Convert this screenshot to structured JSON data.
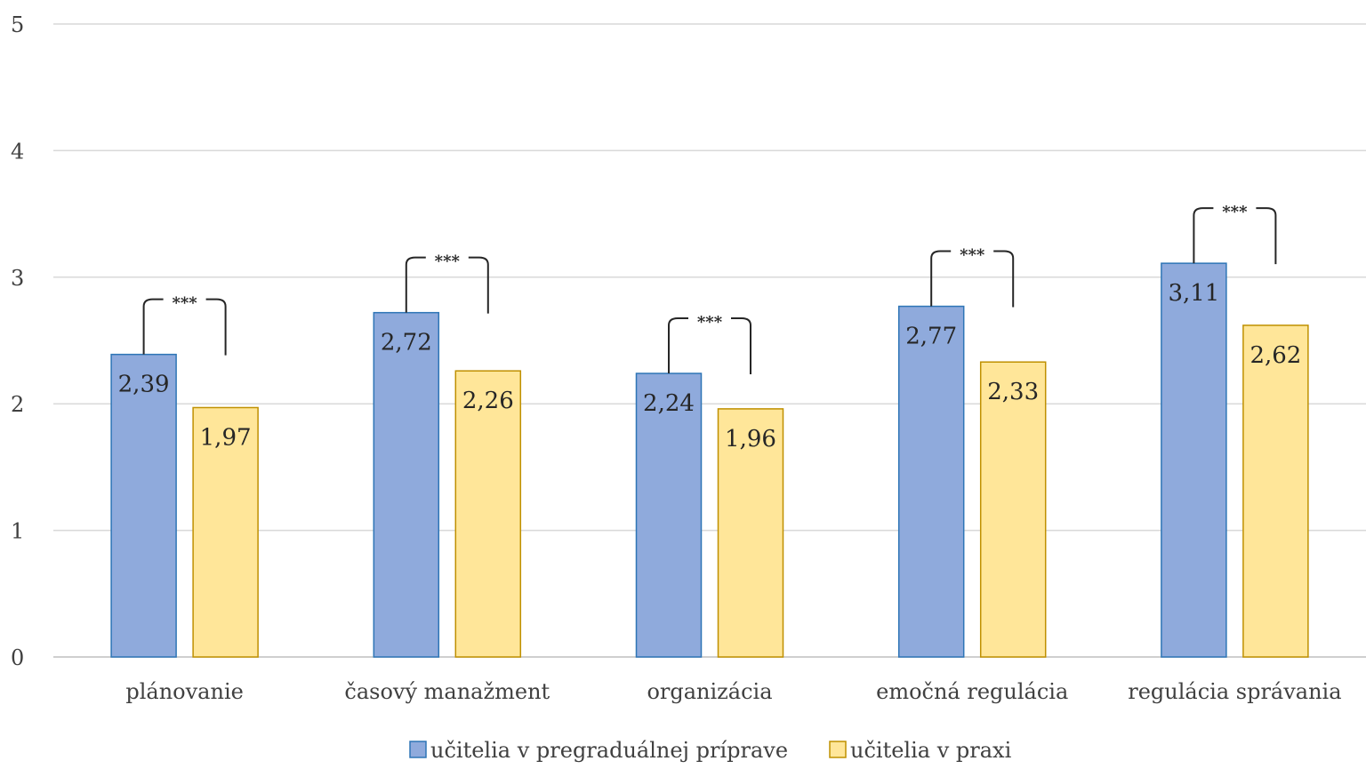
{
  "chart_data": {
    "type": "bar",
    "categories": [
      "plánovanie",
      "časový manažment",
      "organizácia",
      "emočná regulácia",
      "regulácia správania"
    ],
    "series": [
      {
        "name": "učitelia v pregraduálnej príprave",
        "values": [
          2.39,
          2.72,
          2.24,
          2.77,
          3.11
        ],
        "labels": [
          "2,39",
          "2,72",
          "2,24",
          "2,77",
          "3,11"
        ],
        "color": "#8faadc",
        "border": "#2e75b6"
      },
      {
        "name": "učitelia v praxi",
        "values": [
          1.97,
          2.26,
          1.96,
          2.33,
          2.62
        ],
        "labels": [
          "1,97",
          "2,26",
          "1,96",
          "2,33",
          "2,62"
        ],
        "color": "#ffe699",
        "border": "#bf9000"
      }
    ],
    "significance": [
      "***",
      "***",
      "***",
      "***",
      "***"
    ],
    "yticks": [
      "0",
      "1",
      "2",
      "3",
      "4",
      "5"
    ],
    "ylim": [
      0,
      5
    ],
    "grid": true,
    "legend_position": "bottom",
    "colors": {
      "grid": "#d9d9d9",
      "axis": "#bfbfbf",
      "bracket": "#262626"
    }
  }
}
